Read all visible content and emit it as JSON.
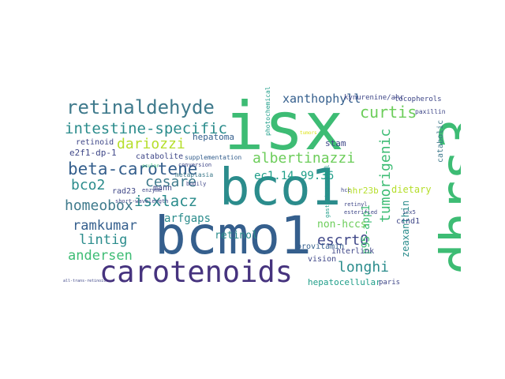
{
  "palette": {
    "green": "#3dbc74",
    "teal": "#2b8c8c",
    "blue": "#355f8d",
    "navy": "#3f4788",
    "purple": "#46337e",
    "lime": "#b5de2b",
    "yellow": "#dde318",
    "light_green": "#6ccd5a",
    "sea": "#1f9e89"
  },
  "words": {
    "isx": "isx",
    "dhrs3": "dhrs3",
    "bco1": "bco1",
    "bcmo1": "bcmo1",
    "carotenoids": "carotenoids",
    "retinaldehyde": "retinaldehyde",
    "intestine_specific": "intestine-specific",
    "beta_carotene": "beta-carotene",
    "dariozzi": "dariozzi",
    "curtis": "curtis",
    "tumorigenic": "tumorigenic",
    "albertinazzi": "albertinazzi",
    "isxlacz": "isxlacz",
    "cesare": "cesare",
    "bco2": "bco2",
    "homeobox": "homeobox",
    "ramkumar": "ramkumar",
    "lintig": "lintig",
    "andersen": "andersen",
    "arfgaps": "arfgaps",
    "xanthophyll": "xanthophyll",
    "ec1_14": "ec1.14.99.36",
    "longhi": "longhi",
    "escrt0": "escrt0",
    "p95_app1": "p95-app1",
    "non_hccs": "non-hccs",
    "retinol": "retinol",
    "hepatoma": "hepatoma",
    "catabolite": "catabolite",
    "e2f1": "e2f1-dp-1",
    "retinoid": "retinoid",
    "stam": "stam",
    "hepatocellular": "hepatocellular",
    "zeaxanthin": "zeaxanthin",
    "dietary": "dietary",
    "catabolic": "catabolic",
    "kynurenine": "kynurenine/ahr",
    "tocopherols": "tocopherols",
    "hhr23b": "hhr23b",
    "provitamin": "provitamin",
    "vision": "vision",
    "interlink": "interlink",
    "paris": "paris",
    "rad23": "rad23",
    "mann": "mann",
    "metaplasia": "metaplasia",
    "supplementation": "supplementation",
    "photochemical": "photochemical",
    "conversion": "conversion",
    "enzyme": "enzyme",
    "short_wavelength": "short-wavelength",
    "ccnd1": "ccnd1",
    "paxillin": "paxillin",
    "esterified": "esterified",
    "retinyl": "retinyl",
    "hcc": "hcc",
    "gastrointestinal": "gastrointestinal",
    "all_trans": "all-trans-retinoic",
    "bodily": "bodily",
    "irx5": "irx5",
    "ocular": "ocular",
    "tumors": "tumors"
  }
}
